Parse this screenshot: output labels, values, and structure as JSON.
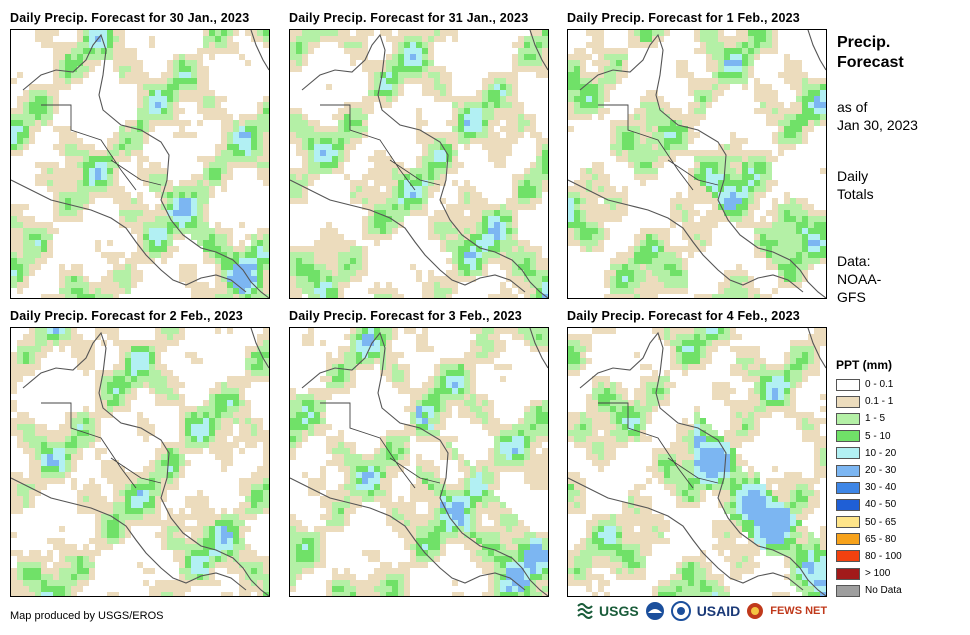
{
  "panels": [
    {
      "title": "Daily Precip. Forecast for 30 Jan., 2023",
      "seed": 11,
      "wet": 0.35
    },
    {
      "title": "Daily Precip. Forecast for 31 Jan., 2023",
      "seed": 23,
      "wet": 0.3
    },
    {
      "title": "Daily Precip. Forecast for 1 Feb., 2023",
      "seed": 37,
      "wet": 0.25
    },
    {
      "title": "Daily Precip. Forecast for 2 Feb., 2023",
      "seed": 41,
      "wet": 0.22
    },
    {
      "title": "Daily Precip. Forecast for 3 Feb., 2023",
      "seed": 53,
      "wet": 0.55
    },
    {
      "title": "Daily Precip. Forecast for 4 Feb., 2023",
      "seed": 67,
      "wet": 0.7
    }
  ],
  "side": {
    "title_line1": "Precip.",
    "title_line2": "Forecast",
    "asof_line1": "as of",
    "asof_line2": "Jan 30, 2023",
    "daily_line1": "Daily",
    "daily_line2": "Totals",
    "data_line1": "Data:",
    "data_line2": "NOAA-",
    "data_line3": "GFS"
  },
  "legend": {
    "title": "PPT (mm)",
    "items": [
      {
        "label": "0 - 0.1",
        "color": "#ffffff"
      },
      {
        "label": "0.1 - 1",
        "color": "#ecdcbd"
      },
      {
        "label": "1 - 5",
        "color": "#b4f0a6"
      },
      {
        "label": "5 - 10",
        "color": "#70e168"
      },
      {
        "label": "10 - 20",
        "color": "#b2f0f3"
      },
      {
        "label": "20 - 30",
        "color": "#7cb6f2"
      },
      {
        "label": "30 - 40",
        "color": "#3e86e6"
      },
      {
        "label": "40 - 50",
        "color": "#1f5fd6"
      },
      {
        "label": "50 - 65",
        "color": "#ffe58a"
      },
      {
        "label": "65 - 80",
        "color": "#f7a21b"
      },
      {
        "label": "80 - 100",
        "color": "#f2410f"
      },
      {
        "label": "> 100",
        "color": "#a21a1a"
      },
      {
        "label": "No Data",
        "color": "#9e9e9e"
      }
    ]
  },
  "footer": {
    "credit": "Map produced by USGS/EROS",
    "logo_usgs": "USGS",
    "logo_usaid": "USAID",
    "logo_fews": "FEWS NET"
  }
}
